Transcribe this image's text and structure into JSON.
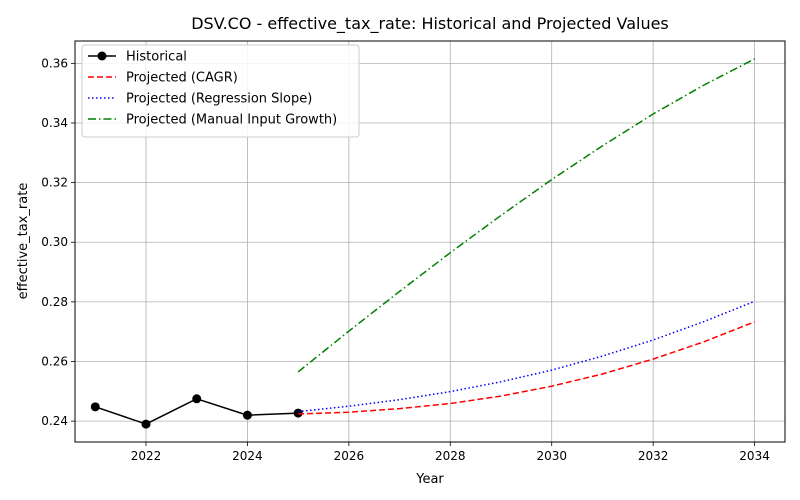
{
  "chart_data": {
    "type": "line",
    "title": "DSV.CO - effective_tax_rate: Historical and Projected Values",
    "xlabel": "Year",
    "ylabel": "effective_tax_rate",
    "xlim": [
      2020.6,
      2034.6
    ],
    "ylim": [
      0.233,
      0.3675
    ],
    "xticks": [
      2022,
      2024,
      2026,
      2028,
      2030,
      2032,
      2034
    ],
    "yticks": [
      0.24,
      0.26,
      0.28,
      0.3,
      0.32,
      0.34,
      0.36
    ],
    "ytick_labels": [
      "0.24",
      "0.26",
      "0.28",
      "0.30",
      "0.32",
      "0.34",
      "0.36"
    ],
    "grid": true,
    "legend_position": "top-left",
    "series": [
      {
        "name": "Historical",
        "style": "solid-marker",
        "color": "#000000",
        "x": [
          2021,
          2022,
          2023,
          2024,
          2025
        ],
        "y": [
          0.2448,
          0.239,
          0.2475,
          0.242,
          0.2427
        ]
      },
      {
        "name": "Projected (CAGR)",
        "style": "dashed",
        "color": "#ff0000",
        "x": [
          2025,
          2026,
          2027,
          2028,
          2029,
          2030,
          2031,
          2032,
          2033,
          2034
        ],
        "y": [
          0.2424,
          0.243,
          0.2442,
          0.2459,
          0.2484,
          0.2517,
          0.2558,
          0.2608,
          0.2666,
          0.2733
        ]
      },
      {
        "name": "Projected (Regression Slope)",
        "style": "dotted",
        "color": "#0000ff",
        "x": [
          2025,
          2026,
          2027,
          2028,
          2029,
          2030,
          2031,
          2032,
          2033,
          2034
        ],
        "y": [
          0.2432,
          0.245,
          0.2472,
          0.2499,
          0.2532,
          0.2571,
          0.2618,
          0.2672,
          0.2734,
          0.2802
        ]
      },
      {
        "name": "Projected (Manual Input Growth)",
        "style": "dashdot",
        "color": "#008000",
        "x": [
          2025,
          2026,
          2027,
          2028,
          2029,
          2030,
          2031,
          2032,
          2033,
          2034
        ],
        "y": [
          0.2565,
          0.2702,
          0.2835,
          0.2965,
          0.309,
          0.321,
          0.3323,
          0.343,
          0.3527,
          0.3615
        ]
      }
    ]
  }
}
